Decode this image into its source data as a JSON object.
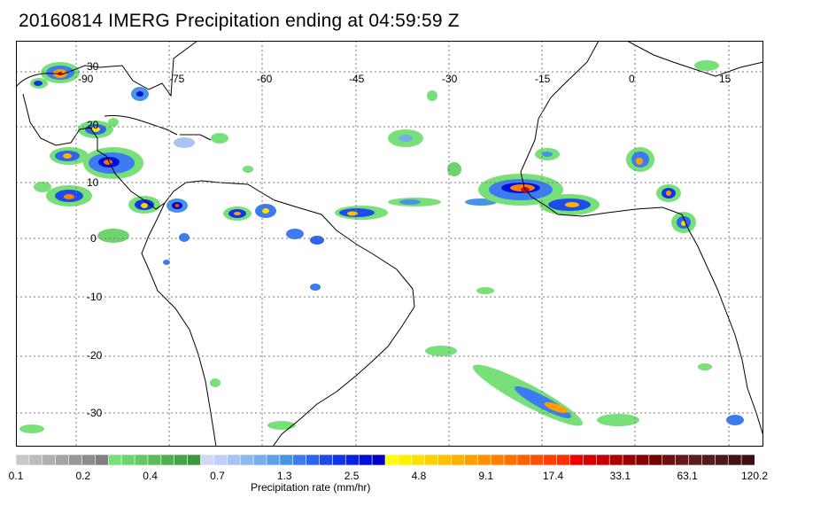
{
  "title": "20160814 IMERG Precipitation ending at 04:59:59 Z",
  "map": {
    "lon_range": [
      -97,
      17.5
    ],
    "lat_range": [
      -38,
      36
    ],
    "lon_labels": [
      -90,
      -75,
      -60,
      -45,
      -30,
      -15,
      0,
      15
    ],
    "lat_labels": [
      30,
      20,
      10,
      0,
      -10,
      -20,
      -30
    ],
    "grid": true,
    "grid_style": "dotted"
  },
  "colorbar": {
    "label": "Precipitation rate (mm/hr)",
    "tick_labels": [
      "0.1",
      "0.2",
      "0.4",
      "0.7",
      "1.3",
      "2.5",
      "4.8",
      "9.1",
      "17.4",
      "33.1",
      "63.1",
      "120.2"
    ],
    "colors": [
      "#c8c8c8",
      "#bcbcbc",
      "#b0b0b0",
      "#a4a4a4",
      "#989898",
      "#8c8c8c",
      "#808080",
      "#78e078",
      "#6ed46e",
      "#64c864",
      "#5abc5a",
      "#50b050",
      "#46a446",
      "#3c983c",
      "#d0d8f8",
      "#c0d0f8",
      "#a8c4f4",
      "#90b8f0",
      "#78acec",
      "#60a0e8",
      "#4894e4",
      "#3c7cf0",
      "#2c64f0",
      "#1c4cec",
      "#1034e8",
      "#0820e0",
      "#0010d8",
      "#0000c8",
      "#ffff00",
      "#fff000",
      "#ffe000",
      "#ffd000",
      "#ffc000",
      "#ffb000",
      "#ffa000",
      "#ff9000",
      "#ff8000",
      "#ff7000",
      "#ff6000",
      "#ff5000",
      "#ff4000",
      "#ff3000",
      "#ee0000",
      "#d80000",
      "#c40000",
      "#b00000",
      "#9c0000",
      "#880000",
      "#740000",
      "#6c1010",
      "#641818",
      "#5c1c1c",
      "#541c1c",
      "#4c1818",
      "#441414",
      "#3c1010"
    ]
  },
  "colors": {
    "coast": "#000000",
    "grid": "#777777",
    "frame": "#000000"
  }
}
